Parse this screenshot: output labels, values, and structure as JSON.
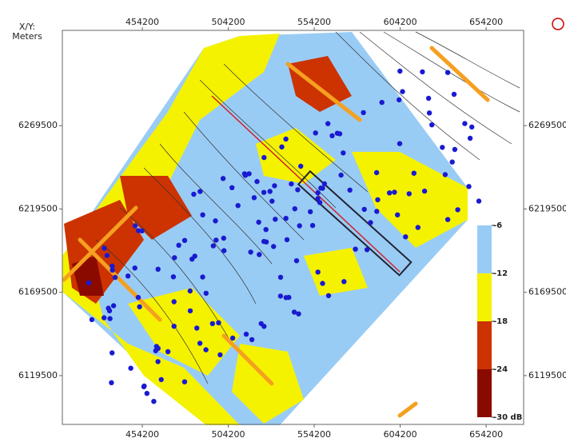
{
  "chart_data": {
    "type": "map",
    "axis_label": [
      "X/Y:",
      "Meters"
    ],
    "xlim": [
      407700,
      676000
    ],
    "ylim": [
      6090200,
      6326700
    ],
    "xticks": [
      454200,
      504200,
      554200,
      604200,
      654200
    ],
    "yticks": [
      6119500,
      6169500,
      6219500,
      6269500
    ],
    "colorbar": {
      "ticks": [
        -6,
        -12,
        -18,
        -24,
        {
          "value": -30,
          "label": "-30 dB"
        }
      ],
      "colors": [
        "#99ccf5",
        "#f5f200",
        "#cc3300",
        "#8b0a00"
      ]
    }
  }
}
